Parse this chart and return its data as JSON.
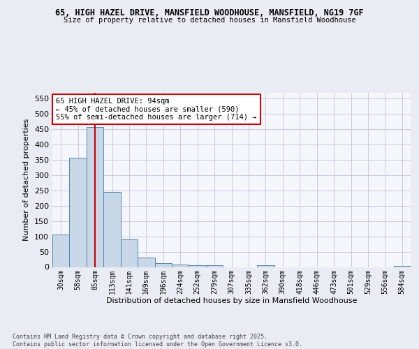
{
  "title": "65, HIGH HAZEL DRIVE, MANSFIELD WOODHOUSE, MANSFIELD, NG19 7GF",
  "subtitle": "Size of property relative to detached houses in Mansfield Woodhouse",
  "xlabel": "Distribution of detached houses by size in Mansfield Woodhouse",
  "ylabel": "Number of detached properties",
  "bin_labels": [
    "30sqm",
    "58sqm",
    "85sqm",
    "113sqm",
    "141sqm",
    "169sqm",
    "196sqm",
    "224sqm",
    "252sqm",
    "279sqm",
    "307sqm",
    "335sqm",
    "362sqm",
    "390sqm",
    "418sqm",
    "446sqm",
    "473sqm",
    "501sqm",
    "529sqm",
    "556sqm",
    "584sqm"
  ],
  "bar_heights": [
    105,
    357,
    457,
    246,
    89,
    31,
    13,
    9,
    5,
    5,
    0,
    0,
    5,
    0,
    0,
    0,
    0,
    0,
    0,
    0,
    4
  ],
  "bar_color": "#c8d8e8",
  "bar_edgecolor": "#5588aa",
  "vline_x": 2,
  "annotation_text": "65 HIGH HAZEL DRIVE: 94sqm\n← 45% of detached houses are smaller (590)\n55% of semi-detached houses are larger (714) →",
  "annotation_box_color": "#ffffff",
  "annotation_box_edgecolor": "#cc0000",
  "vline_color": "#cc0000",
  "ylim": [
    0,
    570
  ],
  "yticks": [
    0,
    50,
    100,
    150,
    200,
    250,
    300,
    350,
    400,
    450,
    500,
    550
  ],
  "footer_text": "Contains HM Land Registry data © Crown copyright and database right 2025.\nContains public sector information licensed under the Open Government Licence v3.0.",
  "bg_color": "#eaecf4",
  "plot_bg_color": "#f4f6fc",
  "grid_color": "#c8ccd8"
}
